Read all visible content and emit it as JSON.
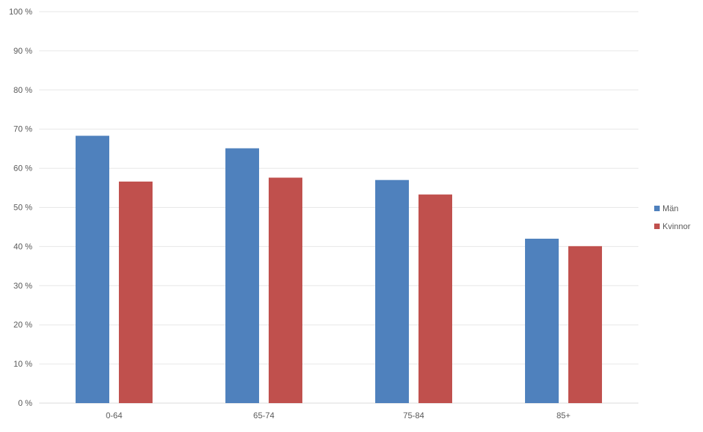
{
  "chart_data": {
    "type": "bar",
    "categories": [
      "0-64",
      "65-74",
      "75-84",
      "85+"
    ],
    "series": [
      {
        "name": "Män",
        "color": "#4F81BD",
        "values": [
          68.3,
          65.1,
          57.0,
          42.0
        ]
      },
      {
        "name": "Kvinnor",
        "color": "#C0504D",
        "values": [
          56.6,
          57.6,
          53.3,
          40.1
        ]
      }
    ],
    "title": "",
    "xlabel": "",
    "ylabel": "",
    "ylim": [
      0,
      100
    ],
    "yticks": [
      "0 %",
      "10 %",
      "20 %",
      "30 %",
      "40 %",
      "50 %",
      "60 %",
      "70 %",
      "80 %",
      "90 %",
      "100 %"
    ],
    "grid": true,
    "legend_position": "right"
  }
}
